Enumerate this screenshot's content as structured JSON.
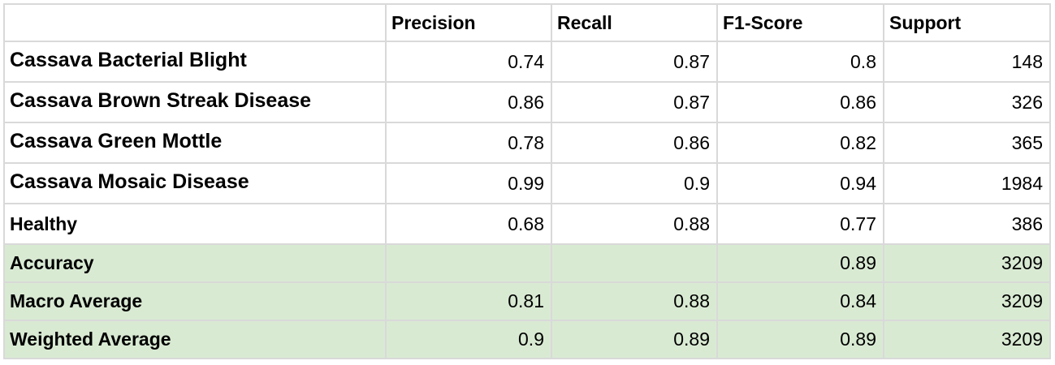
{
  "table": {
    "headers": [
      "",
      "Precision",
      "Recall",
      "F1-Score",
      "Support"
    ],
    "class_rows": [
      {
        "label": "Cassava Bacterial Blight",
        "precision": "0.74",
        "recall": "0.87",
        "f1": "0.8",
        "support": "148"
      },
      {
        "label": "Cassava Brown Streak Disease",
        "precision": "0.86",
        "recall": "0.87",
        "f1": "0.86",
        "support": "326"
      },
      {
        "label": "Cassava Green Mottle",
        "precision": "0.78",
        "recall": "0.86",
        "f1": "0.82",
        "support": "365"
      },
      {
        "label": "Cassava Mosaic Disease",
        "precision": "0.99",
        "recall": "0.9",
        "f1": "0.94",
        "support": "1984"
      },
      {
        "label": "Healthy",
        "precision": "0.68",
        "recall": "0.88",
        "f1": "0.77",
        "support": "386"
      }
    ],
    "summary_rows": [
      {
        "label": "Accuracy",
        "precision": "",
        "recall": "",
        "f1": "0.89",
        "support": "3209"
      },
      {
        "label": "Macro Average",
        "precision": "0.81",
        "recall": "0.88",
        "f1": "0.84",
        "support": "3209"
      },
      {
        "label": "Weighted Average",
        "precision": "0.9",
        "recall": "0.89",
        "f1": "0.89",
        "support": "3209"
      }
    ],
    "colors": {
      "border": "#d9d9d9",
      "summary_fill": "#d9ead3"
    }
  }
}
